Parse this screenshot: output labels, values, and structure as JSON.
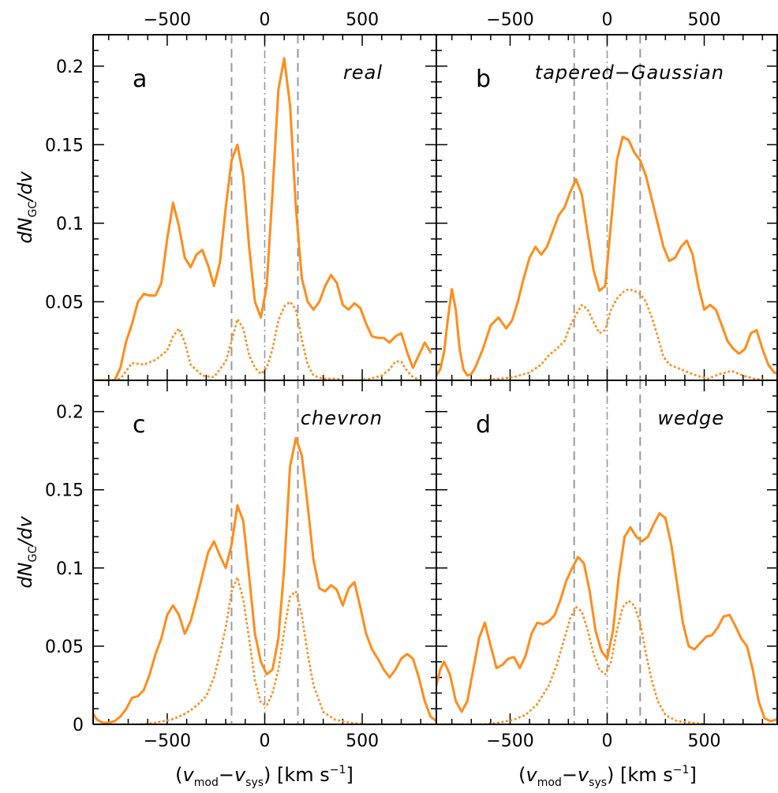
{
  "figure": {
    "xlabel": "(v_mod − v_sys) [km s⁻¹]",
    "ylabel": "dN_GC/dv",
    "x_ticks": [
      "−500",
      "0",
      "500"
    ],
    "y_ticks_top": [
      "0.05",
      "0.1",
      "0.15",
      "0.2"
    ],
    "y_ticks_bottom": [
      "0",
      "0.05",
      "0.1",
      "0.15",
      "0.2"
    ]
  },
  "chart_data": [
    {
      "type": "line",
      "panel_letter": "a",
      "panel_name": "real",
      "xlim": [
        -880,
        880
      ],
      "ylim": [
        0,
        0.22
      ],
      "vlines": {
        "dashed": [
          -170,
          170
        ],
        "dashdot": [
          0
        ]
      },
      "series": [
        {
          "style": "solid",
          "color": "#ff8c1a",
          "x": [
            -860,
            -830,
            -800,
            -770,
            -740,
            -710,
            -680,
            -650,
            -620,
            -590,
            -560,
            -530,
            -500,
            -470,
            -440,
            -410,
            -380,
            -350,
            -320,
            -290,
            -260,
            -230,
            -200,
            -170,
            -140,
            -110,
            -80,
            -50,
            -20,
            10,
            40,
            70,
            100,
            130,
            160,
            190,
            220,
            250,
            280,
            310,
            340,
            370,
            400,
            430,
            460,
            490,
            520,
            550,
            580,
            610,
            640,
            670,
            700,
            730,
            760,
            790,
            820,
            850
          ],
          "y": [
            0,
            0,
            0,
            0,
            0.008,
            0.025,
            0.036,
            0.05,
            0.055,
            0.054,
            0.054,
            0.062,
            0.09,
            0.113,
            0.098,
            0.078,
            0.072,
            0.08,
            0.083,
            0.073,
            0.06,
            0.075,
            0.11,
            0.14,
            0.15,
            0.13,
            0.085,
            0.05,
            0.04,
            0.06,
            0.12,
            0.185,
            0.205,
            0.175,
            0.11,
            0.065,
            0.05,
            0.045,
            0.05,
            0.06,
            0.067,
            0.062,
            0.048,
            0.045,
            0.049,
            0.046,
            0.036,
            0.028,
            0.027,
            0.027,
            0.024,
            0.028,
            0.03,
            0.018,
            0.008,
            0.016,
            0.024,
            0.018
          ]
        },
        {
          "style": "dotted",
          "color": "#ff8c1a",
          "x": [
            -860,
            -800,
            -740,
            -680,
            -620,
            -560,
            -500,
            -470,
            -440,
            -410,
            -380,
            -320,
            -260,
            -200,
            -170,
            -140,
            -110,
            -80,
            -50,
            -20,
            10,
            40,
            70,
            100,
            130,
            160,
            190,
            220,
            250,
            300,
            360,
            420,
            480,
            540,
            600,
            640,
            670,
            700,
            730,
            760,
            800,
            850
          ],
          "y": [
            0,
            0,
            0.001,
            0.011,
            0.01,
            0.013,
            0.019,
            0.028,
            0.033,
            0.024,
            0.01,
            0.003,
            0.002,
            0.012,
            0.025,
            0.039,
            0.033,
            0.016,
            0.008,
            0.004,
            0.008,
            0.02,
            0.038,
            0.047,
            0.05,
            0.045,
            0.026,
            0.01,
            0.003,
            0.001,
            0.001,
            0,
            0,
            0.001,
            0.003,
            0.007,
            0.012,
            0.012,
            0.006,
            0.002,
            0,
            0
          ]
        }
      ]
    },
    {
      "type": "line",
      "panel_letter": "b",
      "panel_name": "tapered−Gaussian",
      "xlim": [
        -880,
        880
      ],
      "ylim": [
        0,
        0.22
      ],
      "vlines": {
        "dashed": [
          -170,
          170
        ],
        "dashdot": [
          0
        ]
      },
      "series": [
        {
          "style": "solid",
          "color": "#ff8c1a",
          "x": [
            -880,
            -860,
            -840,
            -820,
            -800,
            -780,
            -760,
            -740,
            -720,
            -700,
            -680,
            -640,
            -600,
            -560,
            -520,
            -490,
            -460,
            -430,
            -400,
            -370,
            -340,
            -310,
            -280,
            -250,
            -220,
            -190,
            -160,
            -130,
            -100,
            -70,
            -40,
            -10,
            20,
            50,
            80,
            110,
            140,
            170,
            200,
            230,
            260,
            290,
            320,
            350,
            380,
            410,
            440,
            470,
            500,
            530,
            560,
            590,
            620,
            650,
            680,
            710,
            740,
            770,
            800,
            830,
            860,
            880
          ],
          "y": [
            0.003,
            0.007,
            0.018,
            0.04,
            0.058,
            0.045,
            0.02,
            0.007,
            0.003,
            0.004,
            0.008,
            0.02,
            0.035,
            0.04,
            0.033,
            0.038,
            0.05,
            0.065,
            0.078,
            0.085,
            0.08,
            0.085,
            0.095,
            0.105,
            0.11,
            0.12,
            0.128,
            0.118,
            0.093,
            0.07,
            0.057,
            0.06,
            0.1,
            0.14,
            0.155,
            0.153,
            0.145,
            0.14,
            0.13,
            0.115,
            0.1,
            0.085,
            0.076,
            0.078,
            0.085,
            0.089,
            0.08,
            0.06,
            0.045,
            0.048,
            0.045,
            0.035,
            0.025,
            0.02,
            0.017,
            0.02,
            0.03,
            0.032,
            0.02,
            0.01,
            0.005,
            0.004
          ]
        },
        {
          "style": "dotted",
          "color": "#ff8c1a",
          "x": [
            -880,
            -800,
            -720,
            -640,
            -560,
            -480,
            -400,
            -340,
            -300,
            -260,
            -220,
            -190,
            -160,
            -130,
            -100,
            -70,
            -40,
            -10,
            20,
            50,
            80,
            110,
            140,
            170,
            200,
            230,
            260,
            290,
            320,
            360,
            400,
            460,
            520,
            580,
            640,
            700,
            760,
            820,
            880
          ],
          "y": [
            0,
            0,
            0,
            0,
            0.001,
            0.002,
            0.005,
            0.01,
            0.016,
            0.02,
            0.025,
            0.035,
            0.042,
            0.048,
            0.045,
            0.037,
            0.03,
            0.032,
            0.045,
            0.052,
            0.056,
            0.058,
            0.057,
            0.055,
            0.05,
            0.04,
            0.028,
            0.015,
            0.01,
            0.008,
            0.006,
            0.003,
            0.001,
            0.004,
            0.006,
            0.003,
            0.001,
            0,
            0
          ]
        }
      ]
    },
    {
      "type": "line",
      "panel_letter": "c",
      "panel_name": "chevron",
      "xlim": [
        -880,
        880
      ],
      "ylim": [
        0,
        0.22
      ],
      "vlines": {
        "dashed": [
          -170,
          170
        ],
        "dashdot": [
          0
        ]
      },
      "series": [
        {
          "style": "solid",
          "color": "#ff8c1a",
          "x": [
            -880,
            -860,
            -830,
            -800,
            -770,
            -740,
            -710,
            -680,
            -650,
            -620,
            -590,
            -560,
            -530,
            -500,
            -470,
            -440,
            -410,
            -380,
            -350,
            -320,
            -290,
            -260,
            -230,
            -200,
            -170,
            -140,
            -110,
            -80,
            -50,
            -20,
            10,
            40,
            70,
            100,
            130,
            160,
            190,
            220,
            250,
            280,
            310,
            340,
            370,
            400,
            430,
            460,
            490,
            520,
            550,
            580,
            610,
            640,
            670,
            700,
            730,
            760,
            790,
            820,
            850,
            880
          ],
          "y": [
            0.007,
            0.003,
            0.001,
            0.001,
            0.002,
            0.005,
            0.01,
            0.017,
            0.018,
            0.022,
            0.032,
            0.045,
            0.055,
            0.07,
            0.076,
            0.07,
            0.058,
            0.066,
            0.08,
            0.095,
            0.11,
            0.117,
            0.108,
            0.1,
            0.115,
            0.14,
            0.13,
            0.095,
            0.058,
            0.04,
            0.032,
            0.035,
            0.055,
            0.1,
            0.165,
            0.183,
            0.172,
            0.14,
            0.105,
            0.087,
            0.085,
            0.089,
            0.086,
            0.076,
            0.087,
            0.091,
            0.075,
            0.058,
            0.048,
            0.042,
            0.035,
            0.03,
            0.035,
            0.042,
            0.045,
            0.042,
            0.03,
            0.015,
            0.005,
            0.002
          ]
        },
        {
          "style": "dotted",
          "color": "#ff8c1a",
          "x": [
            -880,
            -800,
            -720,
            -640,
            -560,
            -480,
            -420,
            -380,
            -340,
            -300,
            -260,
            -230,
            -200,
            -170,
            -140,
            -110,
            -80,
            -50,
            -20,
            10,
            40,
            70,
            100,
            130,
            160,
            190,
            220,
            250,
            300,
            360,
            440,
            520,
            600,
            680,
            760,
            840,
            880
          ],
          "y": [
            0,
            0,
            0,
            0,
            0.001,
            0.003,
            0.006,
            0.009,
            0.013,
            0.018,
            0.03,
            0.045,
            0.062,
            0.085,
            0.094,
            0.08,
            0.055,
            0.028,
            0.014,
            0.012,
            0.02,
            0.035,
            0.06,
            0.082,
            0.085,
            0.07,
            0.045,
            0.025,
            0.008,
            0.003,
            0.001,
            0,
            0,
            0,
            0,
            0,
            0
          ]
        }
      ]
    },
    {
      "type": "line",
      "panel_letter": "d",
      "panel_name": "wedge",
      "xlim": [
        -880,
        880
      ],
      "ylim": [
        0,
        0.22
      ],
      "vlines": {
        "dashed": [
          -170,
          170
        ],
        "dashdot": [
          0
        ]
      },
      "series": [
        {
          "style": "solid",
          "color": "#ff8c1a",
          "x": [
            -880,
            -860,
            -840,
            -810,
            -780,
            -750,
            -720,
            -690,
            -660,
            -630,
            -600,
            -570,
            -540,
            -510,
            -480,
            -450,
            -420,
            -390,
            -360,
            -330,
            -300,
            -270,
            -240,
            -210,
            -180,
            -150,
            -120,
            -90,
            -60,
            -30,
            0,
            30,
            60,
            90,
            120,
            150,
            180,
            210,
            240,
            270,
            300,
            330,
            360,
            390,
            420,
            450,
            480,
            510,
            540,
            570,
            600,
            630,
            660,
            690,
            720,
            750,
            780,
            810,
            840,
            870,
            880
          ],
          "y": [
            0.025,
            0.035,
            0.04,
            0.032,
            0.015,
            0.008,
            0.015,
            0.035,
            0.055,
            0.065,
            0.05,
            0.036,
            0.038,
            0.042,
            0.043,
            0.036,
            0.044,
            0.058,
            0.065,
            0.064,
            0.066,
            0.07,
            0.08,
            0.092,
            0.1,
            0.107,
            0.103,
            0.085,
            0.06,
            0.047,
            0.042,
            0.06,
            0.095,
            0.12,
            0.126,
            0.12,
            0.117,
            0.12,
            0.128,
            0.135,
            0.132,
            0.115,
            0.09,
            0.065,
            0.05,
            0.048,
            0.052,
            0.056,
            0.057,
            0.062,
            0.069,
            0.07,
            0.063,
            0.055,
            0.05,
            0.035,
            0.015,
            0.004,
            0.002,
            0.003,
            0.004
          ]
        },
        {
          "style": "dotted",
          "color": "#ff8c1a",
          "x": [
            -880,
            -800,
            -720,
            -640,
            -560,
            -480,
            -420,
            -360,
            -300,
            -260,
            -220,
            -190,
            -160,
            -130,
            -100,
            -70,
            -40,
            -10,
            20,
            50,
            80,
            110,
            140,
            170,
            200,
            230,
            260,
            300,
            360,
            440,
            520,
            600,
            680,
            760,
            840,
            880
          ],
          "y": [
            0,
            0,
            0,
            0,
            0.001,
            0.003,
            0.006,
            0.013,
            0.025,
            0.038,
            0.055,
            0.068,
            0.075,
            0.072,
            0.06,
            0.045,
            0.035,
            0.032,
            0.04,
            0.06,
            0.075,
            0.079,
            0.076,
            0.065,
            0.045,
            0.028,
            0.015,
            0.006,
            0.002,
            0.001,
            0,
            0,
            0,
            0,
            0,
            0
          ]
        }
      ]
    }
  ]
}
